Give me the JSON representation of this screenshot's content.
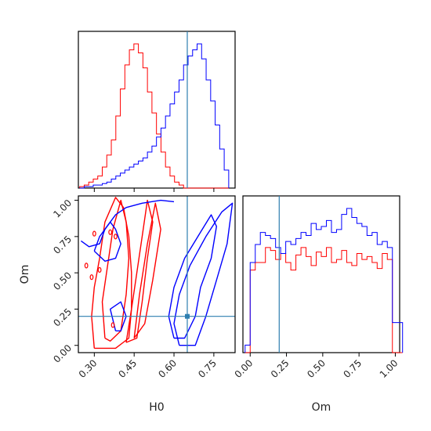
{
  "chart_data": {
    "type": "corner",
    "parameters": [
      "H0",
      "Om"
    ],
    "truths": {
      "H0": 0.65,
      "Om": 0.2
    },
    "colors": {
      "red": "#ff0000",
      "blue": "#0000ff",
      "truth": "#2e7fb0"
    },
    "series": [
      {
        "color": "red"
      },
      {
        "color": "blue"
      }
    ],
    "axes": {
      "H0": {
        "range": [
          0.24,
          0.83
        ],
        "ticks": [
          0.3,
          0.45,
          0.6,
          0.75
        ],
        "tick_labels": [
          "0.30",
          "0.45",
          "0.60",
          "0.75"
        ],
        "label": "H0"
      },
      "Om": {
        "range": [
          -0.05,
          1.03
        ],
        "ticks": [
          0.0,
          0.25,
          0.5,
          0.75,
          1.0
        ],
        "tick_labels": [
          "0.00",
          "0.25",
          "0.50",
          "0.75",
          "1.00"
        ],
        "label": "Om"
      }
    },
    "hist_H0": {
      "bin_edges": [
        0.245,
        0.262,
        0.279,
        0.296,
        0.313,
        0.33,
        0.347,
        0.364,
        0.381,
        0.398,
        0.415,
        0.432,
        0.449,
        0.466,
        0.483,
        0.5,
        0.517,
        0.534,
        0.551,
        0.568,
        0.585,
        0.602,
        0.619,
        0.636,
        0.653,
        0.67,
        0.687,
        0.704,
        0.721,
        0.738,
        0.755,
        0.772,
        0.789,
        0.806
      ],
      "red": [
        1,
        2,
        4,
        6,
        8,
        14,
        22,
        32,
        48,
        66,
        82,
        92,
        96,
        90,
        80,
        64,
        50,
        36,
        24,
        14,
        8,
        4,
        2,
        0,
        0,
        0,
        0,
        0,
        0,
        0,
        0,
        0,
        0
      ],
      "blue": [
        0,
        1,
        1,
        2,
        2,
        3,
        4,
        6,
        8,
        10,
        12,
        14,
        16,
        18,
        20,
        24,
        28,
        34,
        40,
        48,
        56,
        64,
        72,
        82,
        88,
        92,
        96,
        86,
        72,
        58,
        42,
        26,
        12
      ]
    },
    "hist_Om": {
      "bin_edges": [
        -0.035,
        0.0,
        0.035,
        0.07,
        0.105,
        0.14,
        0.175,
        0.21,
        0.245,
        0.28,
        0.315,
        0.35,
        0.385,
        0.42,
        0.455,
        0.49,
        0.525,
        0.56,
        0.595,
        0.63,
        0.665,
        0.7,
        0.735,
        0.77,
        0.805,
        0.84,
        0.875,
        0.91,
        0.945,
        0.98,
        1.015,
        1.05
      ],
      "red": [
        0,
        55,
        60,
        60,
        70,
        68,
        62,
        66,
        60,
        55,
        65,
        70,
        64,
        58,
        67,
        64,
        70,
        60,
        62,
        68,
        60,
        58,
        66,
        62,
        64,
        60,
        56,
        66,
        62,
        0,
        0
      ],
      "blue": [
        5,
        60,
        72,
        80,
        78,
        76,
        70,
        66,
        74,
        72,
        76,
        80,
        78,
        86,
        82,
        84,
        88,
        80,
        82,
        92,
        96,
        90,
        86,
        84,
        78,
        80,
        72,
        74,
        70,
        20,
        20
      ]
    },
    "contours": {
      "red": [
        [
          [
            0.3,
            -0.02
          ],
          [
            0.29,
            0.2
          ],
          [
            0.3,
            0.4
          ],
          [
            0.32,
            0.6
          ],
          [
            0.34,
            0.85
          ],
          [
            0.38,
            1.02
          ],
          [
            0.41,
            0.95
          ],
          [
            0.43,
            0.75
          ],
          [
            0.44,
            0.5
          ],
          [
            0.44,
            0.25
          ],
          [
            0.43,
            0.05
          ],
          [
            0.38,
            -0.02
          ],
          [
            0.3,
            -0.02
          ]
        ],
        [
          [
            0.34,
            0.05
          ],
          [
            0.33,
            0.3
          ],
          [
            0.35,
            0.55
          ],
          [
            0.37,
            0.8
          ],
          [
            0.4,
            1.0
          ],
          [
            0.42,
            0.85
          ],
          [
            0.43,
            0.6
          ],
          [
            0.42,
            0.35
          ],
          [
            0.4,
            0.1
          ],
          [
            0.36,
            0.03
          ],
          [
            0.34,
            0.05
          ]
        ],
        [
          [
            0.42,
            0.02
          ],
          [
            0.44,
            0.25
          ],
          [
            0.46,
            0.5
          ],
          [
            0.48,
            0.75
          ],
          [
            0.5,
            1.0
          ],
          [
            0.52,
            0.85
          ],
          [
            0.5,
            0.6
          ],
          [
            0.48,
            0.3
          ],
          [
            0.46,
            0.05
          ],
          [
            0.42,
            0.02
          ]
        ],
        [
          [
            0.45,
            0.05
          ],
          [
            0.47,
            0.35
          ],
          [
            0.5,
            0.7
          ],
          [
            0.53,
            0.98
          ],
          [
            0.55,
            0.8
          ],
          [
            0.52,
            0.45
          ],
          [
            0.49,
            0.15
          ],
          [
            0.45,
            0.05
          ]
        ]
      ],
      "blue": [
        [
          [
            0.25,
            0.72
          ],
          [
            0.28,
            0.68
          ],
          [
            0.32,
            0.7
          ],
          [
            0.34,
            0.8
          ],
          [
            0.38,
            0.9
          ],
          [
            0.42,
            0.95
          ],
          [
            0.48,
            0.98
          ],
          [
            0.55,
            1.0
          ],
          [
            0.6,
            0.99
          ]
        ],
        [
          [
            0.3,
            0.65
          ],
          [
            0.32,
            0.75
          ],
          [
            0.36,
            0.85
          ],
          [
            0.38,
            0.8
          ],
          [
            0.4,
            0.7
          ],
          [
            0.38,
            0.6
          ],
          [
            0.34,
            0.58
          ],
          [
            0.3,
            0.65
          ]
        ],
        [
          [
            0.6,
            0.05
          ],
          [
            0.58,
            0.2
          ],
          [
            0.6,
            0.4
          ],
          [
            0.64,
            0.6
          ],
          [
            0.7,
            0.78
          ],
          [
            0.74,
            0.9
          ],
          [
            0.76,
            0.82
          ],
          [
            0.74,
            0.6
          ],
          [
            0.7,
            0.4
          ],
          [
            0.68,
            0.2
          ],
          [
            0.64,
            0.05
          ],
          [
            0.6,
            0.05
          ]
        ],
        [
          [
            0.62,
            0.0
          ],
          [
            0.6,
            0.15
          ],
          [
            0.62,
            0.35
          ],
          [
            0.66,
            0.55
          ],
          [
            0.72,
            0.75
          ],
          [
            0.78,
            0.92
          ],
          [
            0.82,
            0.98
          ],
          [
            0.8,
            0.7
          ],
          [
            0.76,
            0.45
          ],
          [
            0.72,
            0.2
          ],
          [
            0.68,
            0.0
          ],
          [
            0.62,
            0.0
          ]
        ],
        [
          [
            0.38,
            0.1
          ],
          [
            0.36,
            0.25
          ],
          [
            0.4,
            0.3
          ],
          [
            0.42,
            0.2
          ],
          [
            0.4,
            0.1
          ],
          [
            0.38,
            0.1
          ]
        ]
      ]
    },
    "red_points": [
      [
        0.3,
        0.77
      ],
      [
        0.27,
        0.55
      ],
      [
        0.29,
        0.47
      ],
      [
        0.32,
        0.52
      ],
      [
        0.37,
        0.14
      ],
      [
        0.36,
        0.78
      ],
      [
        0.38,
        0.75
      ]
    ]
  }
}
